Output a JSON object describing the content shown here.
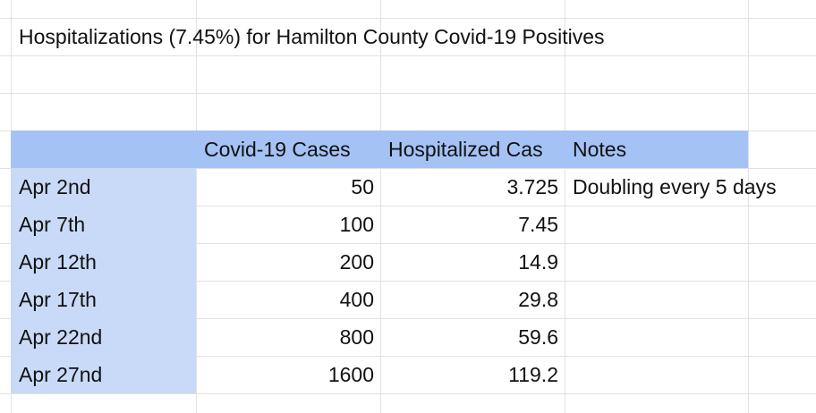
{
  "title": "Hospitalizations (7.45%) for Hamilton County Covid-19 Positives",
  "headers": {
    "cases": "Covid-19 Cases",
    "hospitalized": "Hospitalized Cas",
    "notes": "Notes"
  },
  "rows": [
    {
      "date": "Apr 2nd",
      "cases": "50",
      "hospitalized": "3.725",
      "notes": "Doubling every 5 days"
    },
    {
      "date": "Apr 7th",
      "cases": "100",
      "hospitalized": "7.45",
      "notes": ""
    },
    {
      "date": "Apr 12th",
      "cases": "200",
      "hospitalized": "14.9",
      "notes": ""
    },
    {
      "date": "Apr 17th",
      "cases": "400",
      "hospitalized": "29.8",
      "notes": ""
    },
    {
      "date": "Apr 22nd",
      "cases": "800",
      "hospitalized": "59.6",
      "notes": ""
    },
    {
      "date": "Apr 27nd",
      "cases": "1600",
      "hospitalized": "119.2",
      "notes": ""
    }
  ],
  "colors": {
    "header_fill": "#a4c2f4",
    "date_fill": "#c9daf8",
    "grid": "#e2e2e2"
  }
}
